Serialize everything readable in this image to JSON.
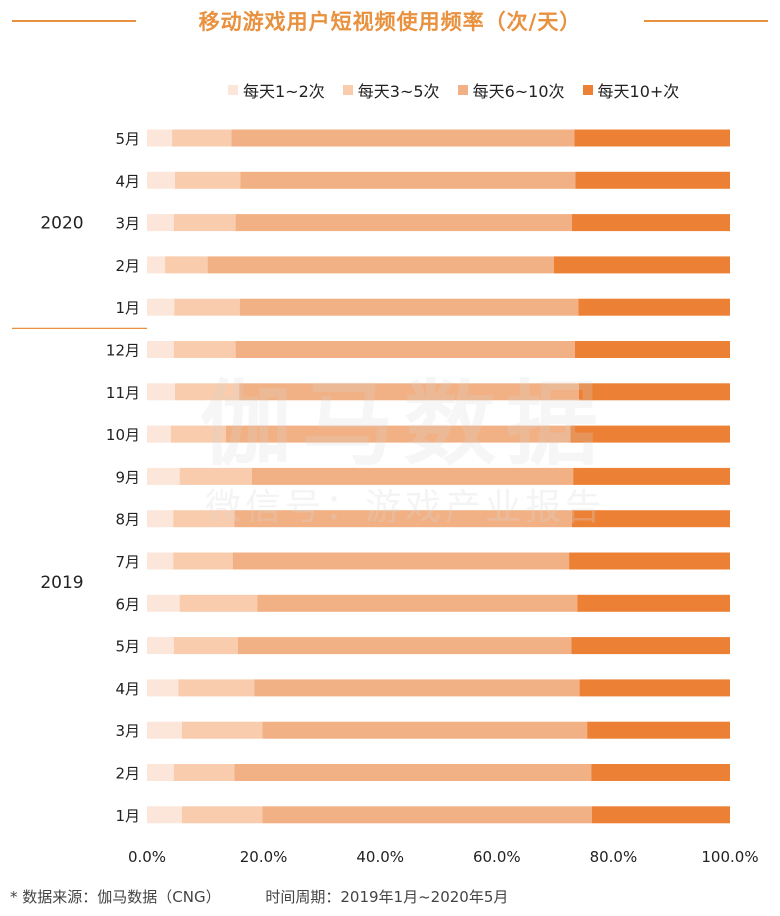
{
  "title": "移动游戏用户短视频使用频率（次/天）",
  "watermark": {
    "main": "伽马数据",
    "sub": "微信号：游戏产业报告"
  },
  "footer": {
    "source": "*  数据来源：伽马数据（CNG）",
    "period": "时间周期：2019年1月~2020年5月"
  },
  "colors": [
    "#fbe6d9",
    "#f8ccad",
    "#f2b184",
    "#ec8136"
  ],
  "chart_data": {
    "type": "bar",
    "orientation": "horizontal",
    "stacked": true,
    "title": "移动游戏用户短视频使用频率（次/天）",
    "groups": [
      {
        "label": "2020",
        "categories": [
          "5月",
          "4月",
          "3月",
          "2月",
          "1月"
        ]
      },
      {
        "label": "2019",
        "categories": [
          "12月",
          "11月",
          "10月",
          "9月",
          "8月",
          "7月",
          "6月",
          "5月",
          "4月",
          "3月",
          "2月",
          "1月"
        ]
      }
    ],
    "categories": [
      "5月",
      "4月",
      "3月",
      "2月",
      "1月",
      "12月",
      "11月",
      "10月",
      "9月",
      "8月",
      "7月",
      "6月",
      "5月",
      "4月",
      "3月",
      "2月",
      "1月"
    ],
    "series": [
      {
        "name": "每天1~2次",
        "values": [
          4.3,
          4.8,
          4.6,
          3.1,
          4.7,
          4.6,
          4.8,
          4.1,
          5.6,
          4.5,
          4.5,
          5.6,
          4.6,
          5.4,
          6.0,
          4.6,
          6.0
        ]
      },
      {
        "name": "每天3~5次",
        "values": [
          10.2,
          11.2,
          10.6,
          7.3,
          11.2,
          10.6,
          11.0,
          9.4,
          12.4,
          10.5,
          10.2,
          13.3,
          11.0,
          13.0,
          13.8,
          10.4,
          13.8
        ]
      },
      {
        "name": "每天6~10次",
        "values": [
          58.8,
          57.5,
          57.7,
          59.4,
          58.1,
          58.2,
          58.3,
          59.1,
          55.1,
          57.9,
          57.7,
          54.9,
          57.2,
          55.8,
          55.7,
          61.2,
          56.5
        ]
      },
      {
        "name": "每天10+次",
        "values": [
          26.7,
          26.5,
          27.1,
          30.2,
          26.0,
          26.6,
          25.9,
          27.4,
          26.9,
          27.1,
          27.6,
          26.2,
          27.2,
          25.8,
          24.5,
          23.8,
          23.7
        ]
      }
    ],
    "xlim": [
      0,
      100
    ],
    "x_ticks": [
      "0.0%",
      "20.0%",
      "40.0%",
      "60.0%",
      "80.0%",
      "100.0%"
    ],
    "legend_position": "top-right"
  }
}
